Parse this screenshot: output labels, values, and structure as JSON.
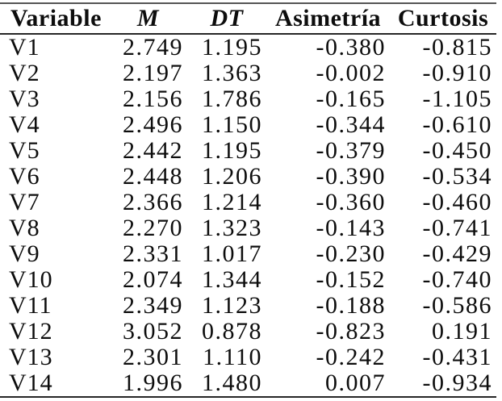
{
  "table": {
    "columns": [
      {
        "key": "variable",
        "label": "Variable"
      },
      {
        "key": "m",
        "label": "M"
      },
      {
        "key": "dt",
        "label": "DT"
      },
      {
        "key": "asimetria",
        "label": "Asimetría"
      },
      {
        "key": "curtosis",
        "label": "Curtosis"
      }
    ],
    "rows": [
      [
        "V1",
        "2.749",
        "1.195",
        "-0.380",
        "-0.815"
      ],
      [
        "V2",
        "2.197",
        "1.363",
        "-0.002",
        "-0.910"
      ],
      [
        "V3",
        "2.156",
        "1.786",
        "-0.165",
        "-1.105"
      ],
      [
        "V4",
        "2.496",
        "1.150",
        "-0.344",
        "-0.610"
      ],
      [
        "V5",
        "2.442",
        "1.195",
        "-0.379",
        "-0.450"
      ],
      [
        "V6",
        "2.448",
        "1.206",
        "-0.390",
        "-0.534"
      ],
      [
        "V7",
        "2.366",
        "1.214",
        "-0.360",
        "-0.460"
      ],
      [
        "V8",
        "2.270",
        "1.323",
        "-0.143",
        "-0.741"
      ],
      [
        "V9",
        "2.331",
        "1.017",
        "-0.230",
        "-0.429"
      ],
      [
        "V10",
        "2.074",
        "1.344",
        "-0.152",
        "-0.740"
      ],
      [
        "V11",
        "2.349",
        "1.123",
        "-0.188",
        "-0.586"
      ],
      [
        "V12",
        "3.052",
        "0.878",
        "-0.823",
        "0.191"
      ],
      [
        "V13",
        "2.301",
        "1.110",
        "-0.242",
        "-0.431"
      ],
      [
        "V14",
        "1.996",
        "1.480",
        "0.007",
        "-0.934"
      ]
    ],
    "text_color": "#0d0d0d",
    "rule_color": "#262626"
  }
}
